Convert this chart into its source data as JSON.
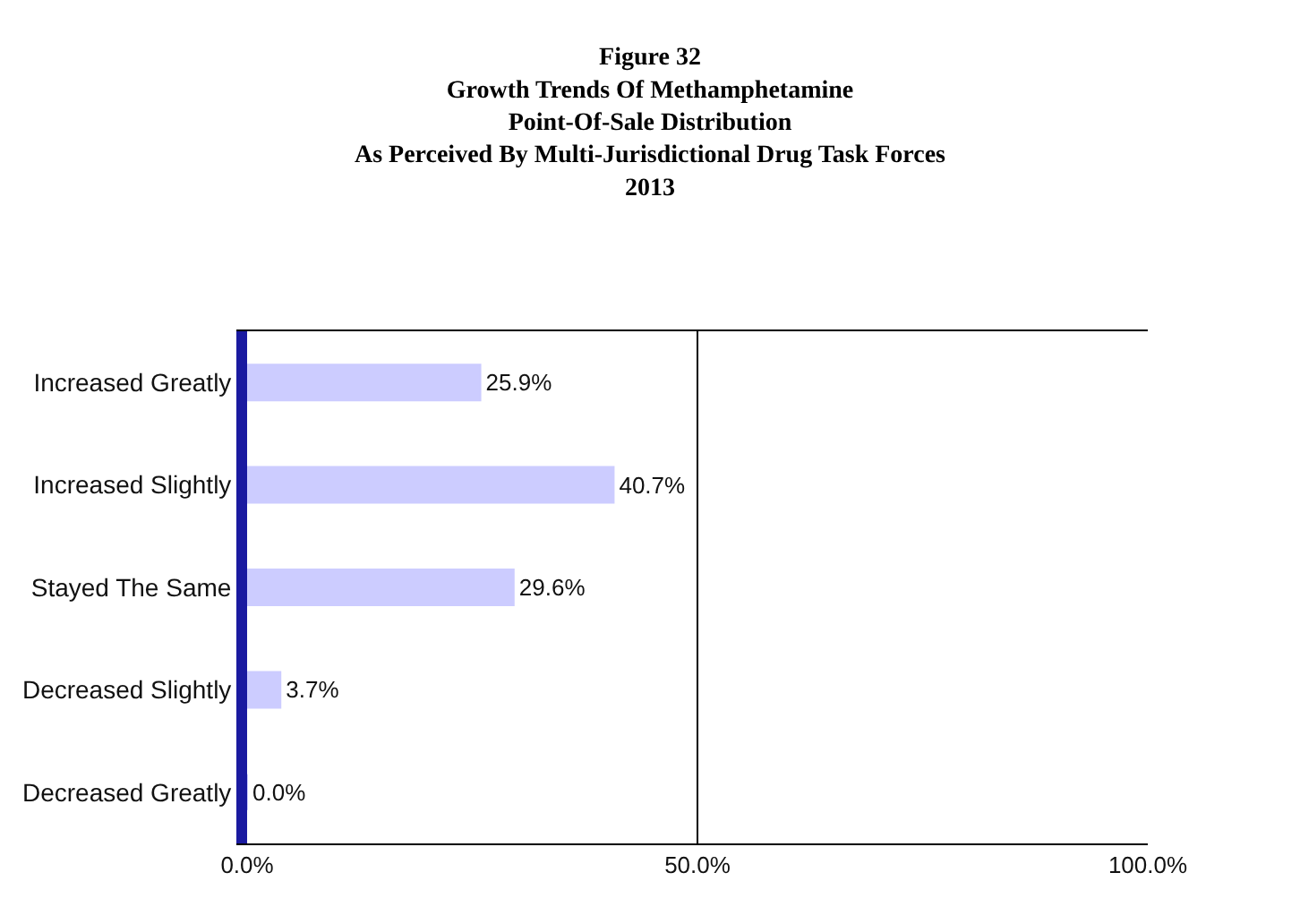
{
  "chart_data": {
    "type": "bar",
    "orientation": "horizontal",
    "title": "Figure 32\nGrowth Trends Of Methamphetamine\nPoint-Of-Sale Distribution\nAs Perceived By Multi-Jurisdictional Drug Task Forces\n2013",
    "categories": [
      "Increased Greatly",
      "Increased Slightly",
      "Stayed The Same",
      "Decreased Slightly",
      "Decreased Greatly"
    ],
    "values": [
      25.9,
      40.7,
      29.6,
      3.7,
      0.0
    ],
    "value_labels": [
      "25.9%",
      "40.7%",
      "29.6%",
      "3.7%",
      "0.0%"
    ],
    "color": "#ccccff",
    "xlim": [
      0,
      100
    ],
    "xticks": [
      {
        "value": 0,
        "label": "0.0%"
      },
      {
        "value": 50,
        "label": "50.0%"
      },
      {
        "value": 100,
        "label": "100.0%"
      }
    ],
    "grid": "x"
  }
}
